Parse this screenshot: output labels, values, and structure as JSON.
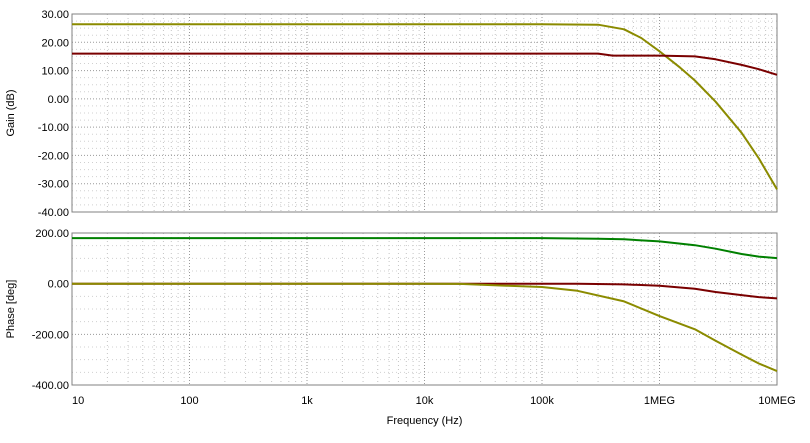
{
  "chart_data": [
    {
      "type": "line",
      "ylabel": "Gain (dB)",
      "ylim": [
        -40,
        30
      ],
      "xlim": [
        10,
        10000000
      ],
      "xscale": "log",
      "grid": true,
      "ytick_labels": [
        "30.00",
        "20.00",
        "10.00",
        "0.00",
        "-10.00",
        "-20.00",
        "-30.00",
        "-40.00"
      ],
      "ytick_values": [
        30,
        20,
        10,
        0,
        -10,
        -20,
        -30,
        -40
      ],
      "series": [
        {
          "color": "#8b8b00",
          "points": [
            [
              10,
              26.4
            ],
            [
              100000,
              26.4
            ],
            [
              300000,
              26.2
            ],
            [
              500000,
              24.6
            ],
            [
              700000,
              21.5
            ],
            [
              1000000,
              16.8
            ],
            [
              1500000,
              11
            ],
            [
              2000000,
              6.5
            ],
            [
              3000000,
              -1
            ],
            [
              5000000,
              -12
            ],
            [
              7000000,
              -21
            ],
            [
              10000000,
              -32
            ]
          ]
        },
        {
          "color": "#7a0000",
          "points": [
            [
              10,
              16
            ],
            [
              300000,
              16
            ],
            [
              400000,
              15.3
            ],
            [
              1000000,
              15.3
            ],
            [
              2000000,
              15
            ],
            [
              3000000,
              14
            ],
            [
              5000000,
              12
            ],
            [
              7000000,
              10.5
            ],
            [
              10000000,
              8.5
            ]
          ]
        }
      ]
    },
    {
      "type": "line",
      "xlabel": "Frequency (Hz)",
      "ylabel": "Phase [deg]",
      "ylim": [
        -400,
        200
      ],
      "xlim": [
        10,
        10000000
      ],
      "xscale": "log",
      "grid": true,
      "ytick_labels": [
        "200.00",
        "0.00",
        "-200.00",
        "-400.00"
      ],
      "ytick_values": [
        200,
        0,
        -200,
        -400
      ],
      "xtick_labels": [
        "10",
        "100",
        "1k",
        "10k",
        "100k",
        "1MEG",
        "10MEG"
      ],
      "xtick_values": [
        10,
        100,
        1000,
        10000,
        100000,
        1000000,
        10000000
      ],
      "series": [
        {
          "color": "#008000",
          "points": [
            [
              10,
              180
            ],
            [
              100000,
              180
            ],
            [
              300000,
              177
            ],
            [
              500000,
              175
            ],
            [
              1000000,
              167
            ],
            [
              2000000,
              152
            ],
            [
              3000000,
              138
            ],
            [
              5000000,
              117
            ],
            [
              7000000,
              107
            ],
            [
              10000000,
              101
            ]
          ]
        },
        {
          "color": "#7a0000",
          "points": [
            [
              10,
              0
            ],
            [
              200000,
              -0.5
            ],
            [
              500000,
              -3
            ],
            [
              1000000,
              -8
            ],
            [
              2000000,
              -20
            ],
            [
              3000000,
              -33
            ],
            [
              5000000,
              -45
            ],
            [
              7000000,
              -53
            ],
            [
              10000000,
              -58
            ]
          ]
        },
        {
          "color": "#8b8b00",
          "points": [
            [
              10,
              0
            ],
            [
              10000,
              -0.5
            ],
            [
              20000,
              -1
            ],
            [
              50000,
              -8
            ],
            [
              100000,
              -13
            ],
            [
              200000,
              -28
            ],
            [
              500000,
              -70
            ],
            [
              1000000,
              -128
            ],
            [
              2000000,
              -180
            ],
            [
              3000000,
              -225
            ],
            [
              5000000,
              -280
            ],
            [
              7000000,
              -315
            ],
            [
              10000000,
              -345
            ]
          ]
        }
      ]
    }
  ]
}
